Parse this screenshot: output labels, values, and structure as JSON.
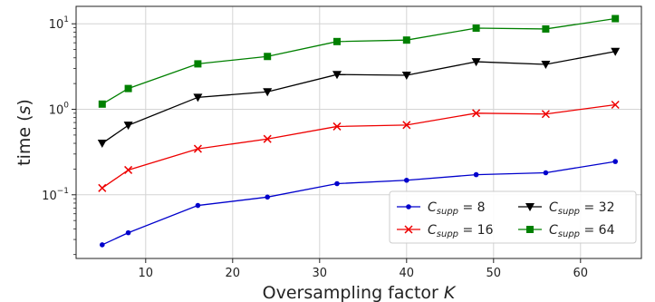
{
  "chart_data": {
    "type": "line",
    "xlabel": "Oversampling factor K",
    "ylabel": "time (s)",
    "x_scale": "linear",
    "y_scale": "log",
    "xlim": [
      2,
      67
    ],
    "ylim": [
      0.018,
      16
    ],
    "x_ticks": [
      10,
      20,
      30,
      40,
      50,
      60
    ],
    "y_ticks": [
      {
        "value": 0.1,
        "base": "10",
        "exp": "−1"
      },
      {
        "value": 1,
        "base": "10",
        "exp": "0"
      },
      {
        "value": 10,
        "base": "10",
        "exp": "1"
      }
    ],
    "grid": true,
    "legend_position": "lower-right",
    "x": [
      5,
      8,
      16,
      24,
      32,
      40,
      48,
      56,
      64
    ],
    "series": [
      {
        "name": "C_supp = 8",
        "sub": "supp",
        "value_label": "8",
        "color": "#0000cc",
        "marker": "dot",
        "values": [
          0.026,
          0.036,
          0.075,
          0.094,
          0.135,
          0.148,
          0.172,
          0.181,
          0.245
        ]
      },
      {
        "name": "C_supp = 16",
        "sub": "supp",
        "value_label": "16",
        "color": "#ee0000",
        "marker": "x",
        "values": [
          0.12,
          0.195,
          0.345,
          0.45,
          0.63,
          0.655,
          0.9,
          0.88,
          1.13
        ]
      },
      {
        "name": "C_supp = 32",
        "sub": "supp",
        "value_label": "32",
        "color": "#000000",
        "marker": "triangle-down",
        "values": [
          0.4,
          0.65,
          1.38,
          1.6,
          2.55,
          2.5,
          3.6,
          3.35,
          4.75
        ]
      },
      {
        "name": "C_supp = 64",
        "sub": "supp",
        "value_label": "64",
        "color": "#008000",
        "marker": "square",
        "values": [
          1.15,
          1.75,
          3.4,
          4.15,
          6.2,
          6.45,
          8.9,
          8.7,
          11.5
        ]
      }
    ]
  }
}
